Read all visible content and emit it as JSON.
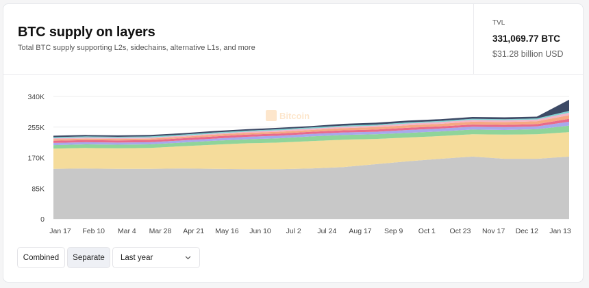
{
  "header": {
    "title": "BTC supply on layers",
    "subtitle": "Total BTC supply supporting L2s, sidechains, alternative L1s, and more"
  },
  "tvl": {
    "label": "TVL",
    "btc_value": "331,069.77 BTC",
    "usd_value": "$31.28 billion USD"
  },
  "controls": {
    "combined_label": "Combined",
    "separate_label": "Separate",
    "range_selected": "Last year",
    "active": "separate"
  },
  "watermark": "Bitcoin",
  "icons": {
    "dropdown": "chevron-down-icon",
    "watermark": "bitcoin-logo-icon"
  },
  "chart_data": {
    "type": "area",
    "stacked": true,
    "y_ticks": [
      "0",
      "85K",
      "170K",
      "255K",
      "340K"
    ],
    "ylim": [
      0,
      340000
    ],
    "x_tick_labels": [
      "Jan 17",
      "Feb 10",
      "Mar 4",
      "Mar 28",
      "Apr 21",
      "May 16",
      "Jun 10",
      "Jul 2",
      "Jul 24",
      "Aug 17",
      "Sep 9",
      "Oct 1",
      "Oct 23",
      "Nov 17",
      "Dec 12",
      "Jan 13"
    ],
    "x": [
      "Jan 17",
      "Feb 10",
      "Mar 4",
      "Mar 28",
      "Apr 21",
      "May 16",
      "Jun 10",
      "Jul 2",
      "Jul 24",
      "Aug 17",
      "Sep 9",
      "Oct 1",
      "Oct 23",
      "Nov 17",
      "Dec 12",
      "Jan 13",
      "Jan 17"
    ],
    "grid": true,
    "series": [
      {
        "color": "#c8c8c8",
        "values": [
          139000,
          140000,
          139000,
          139000,
          140000,
          139000,
          138000,
          138000,
          140000,
          144000,
          152000,
          160000,
          167000,
          173000,
          167000,
          167000,
          173000
        ]
      },
      {
        "color": "#f5dc9b",
        "values": [
          56000,
          57000,
          57000,
          58000,
          62000,
          67000,
          72000,
          74000,
          76000,
          76000,
          70000,
          66000,
          63000,
          62000,
          67000,
          68000,
          68000
        ]
      },
      {
        "color": "#8fd49a",
        "values": [
          10000,
          10000,
          10000,
          10000,
          10000,
          11000,
          11000,
          12000,
          13000,
          13000,
          13000,
          13000,
          13000,
          13000,
          13000,
          14000,
          18000
        ]
      },
      {
        "color": "#a8a8ec",
        "values": [
          6000,
          6000,
          6000,
          6000,
          6000,
          6000,
          7000,
          7000,
          7000,
          7000,
          7000,
          8000,
          8000,
          8000,
          8000,
          8000,
          11000
        ]
      },
      {
        "color": "#e86a8a",
        "values": [
          6000,
          6000,
          6000,
          6000,
          6000,
          6000,
          6000,
          6000,
          6000,
          6000,
          6000,
          6000,
          6000,
          6000,
          6000,
          6000,
          8000
        ]
      },
      {
        "color": "#f6a883",
        "values": [
          4000,
          4000,
          4000,
          4000,
          4000,
          5000,
          5000,
          5000,
          5000,
          6000,
          7000,
          7000,
          7000,
          8000,
          8000,
          8000,
          10000
        ]
      },
      {
        "color": "#f3b5c9",
        "values": [
          3000,
          3000,
          3000,
          3000,
          3000,
          3000,
          3000,
          4000,
          4000,
          4000,
          4000,
          5000,
          5000,
          5000,
          5000,
          5000,
          7000
        ]
      },
      {
        "color": "#7fd3d3",
        "values": [
          3000,
          3000,
          3000,
          3000,
          3000,
          3000,
          3000,
          3000,
          3000,
          3000,
          3000,
          3000,
          3000,
          3000,
          3000,
          3000,
          5000
        ]
      },
      {
        "color": "#3d4a66",
        "values": [
          4000,
          4000,
          4000,
          4000,
          4000,
          4000,
          4000,
          4000,
          4000,
          5000,
          5000,
          5000,
          5000,
          5000,
          5000,
          5000,
          31000
        ]
      }
    ]
  }
}
